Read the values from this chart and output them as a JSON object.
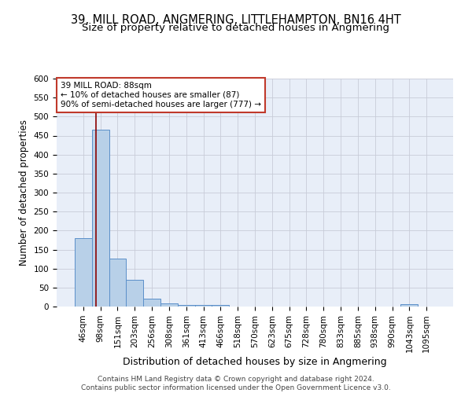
{
  "title": "39, MILL ROAD, ANGMERING, LITTLEHAMPTON, BN16 4HT",
  "subtitle": "Size of property relative to detached houses in Angmering",
  "xlabel": "Distribution of detached houses by size in Angmering",
  "ylabel": "Number of detached properties",
  "categories": [
    "46sqm",
    "98sqm",
    "151sqm",
    "203sqm",
    "256sqm",
    "308sqm",
    "361sqm",
    "413sqm",
    "466sqm",
    "518sqm",
    "570sqm",
    "623sqm",
    "675sqm",
    "728sqm",
    "780sqm",
    "833sqm",
    "885sqm",
    "938sqm",
    "990sqm",
    "1043sqm",
    "1095sqm"
  ],
  "values": [
    180,
    465,
    127,
    70,
    20,
    8,
    5,
    5,
    5,
    0,
    0,
    0,
    0,
    0,
    0,
    0,
    0,
    0,
    0,
    6,
    0
  ],
  "bar_color": "#b8d0e8",
  "bar_edge_color": "#5b8fc9",
  "background_color": "#e8eef8",
  "grid_color": "#c8ccd8",
  "vline_color": "#8b0000",
  "vline_position": 0.72,
  "annotation_text": "39 MILL ROAD: 88sqm\n← 10% of detached houses are smaller (87)\n90% of semi-detached houses are larger (777) →",
  "annotation_box_color": "#ffffff",
  "annotation_box_edge": "#c0392b",
  "ylim": [
    0,
    600
  ],
  "yticks": [
    0,
    50,
    100,
    150,
    200,
    250,
    300,
    350,
    400,
    450,
    500,
    550,
    600
  ],
  "footer": "Contains HM Land Registry data © Crown copyright and database right 2024.\nContains public sector information licensed under the Open Government Licence v3.0.",
  "title_fontsize": 10.5,
  "subtitle_fontsize": 9.5,
  "xlabel_fontsize": 9,
  "ylabel_fontsize": 8.5,
  "tick_fontsize": 7.5,
  "annotation_fontsize": 7.5,
  "footer_fontsize": 6.5
}
